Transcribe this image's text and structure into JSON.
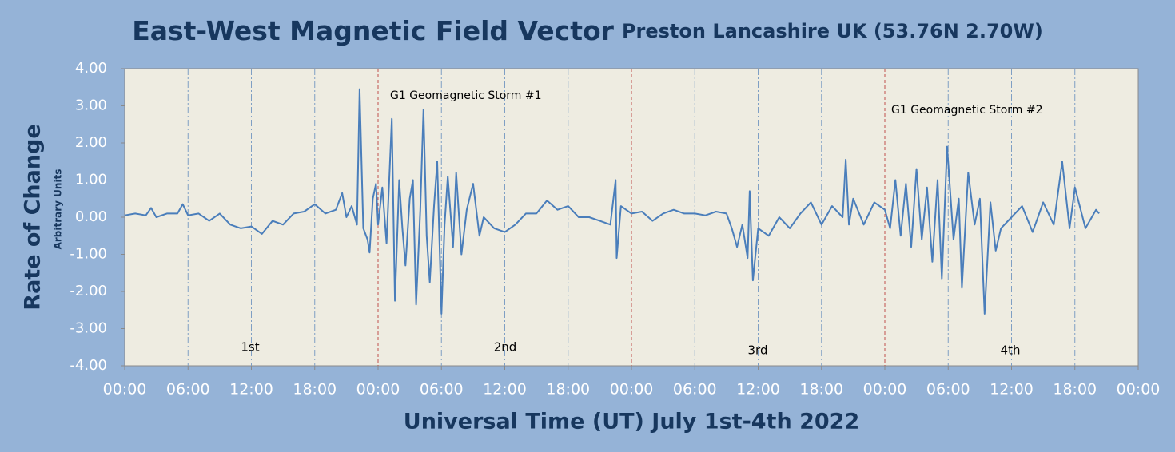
{
  "chart_data": {
    "type": "line",
    "title": "East-West Magnetic Field Vector",
    "subtitle": "Preston Lancashire UK (53.76N 2.70W)",
    "x_label": "Universal Time (UT) July 1st-4th 2022",
    "y_label": "Rate of Change",
    "y_sublabel": "Arbitrary Units",
    "annotations": [
      "G1 Geomagnetic Storm #1",
      "G1 Geomagnetic Storm #2"
    ],
    "day_labels": [
      "1st",
      "2nd",
      "3rd",
      "4th"
    ],
    "xlim": [
      0,
      96
    ],
    "xticks": [
      {
        "value": 0,
        "label": "00:00"
      },
      {
        "value": 6,
        "label": "06:00"
      },
      {
        "value": 12,
        "label": "12:00"
      },
      {
        "value": 18,
        "label": "18:00"
      },
      {
        "value": 24,
        "label": "00:00"
      },
      {
        "value": 30,
        "label": "06:00"
      },
      {
        "value": 36,
        "label": "12:00"
      },
      {
        "value": 42,
        "label": "18:00"
      },
      {
        "value": 48,
        "label": "00:00"
      },
      {
        "value": 54,
        "label": "06:00"
      },
      {
        "value": 60,
        "label": "12:00"
      },
      {
        "value": 66,
        "label": "18:00"
      },
      {
        "value": 72,
        "label": "00:00"
      },
      {
        "value": 78,
        "label": "06:00"
      },
      {
        "value": 84,
        "label": "12:00"
      },
      {
        "value": 90,
        "label": "18:00"
      },
      {
        "value": 96,
        "label": "00:00"
      }
    ],
    "ylim": [
      -4,
      4
    ],
    "yticks": [
      {
        "value": -4,
        "label": "-4.00"
      },
      {
        "value": -3,
        "label": "-3.00"
      },
      {
        "value": -2,
        "label": "-2.00"
      },
      {
        "value": -1,
        "label": "-1.00"
      },
      {
        "value": 0,
        "label": "0.00"
      },
      {
        "value": 1,
        "label": "1.00"
      },
      {
        "value": 2,
        "label": "2.00"
      },
      {
        "value": 3,
        "label": "3.00"
      },
      {
        "value": 4,
        "label": "4.00"
      }
    ],
    "grid": "x",
    "color": "#4a7ebb",
    "x": [
      0,
      1,
      2,
      2.5,
      3,
      4,
      5,
      5.5,
      6,
      7,
      8,
      9,
      10,
      11,
      12,
      13,
      14,
      15,
      16,
      17,
      18,
      19,
      20,
      20.6,
      21,
      21.5,
      22,
      22.25,
      22.6,
      23,
      23.2,
      23.5,
      23.8,
      24,
      24.4,
      24.8,
      25.3,
      25.6,
      26,
      26.3,
      26.6,
      27,
      27.3,
      27.6,
      28,
      28.3,
      28.6,
      28.9,
      29.3,
      29.6,
      30,
      30.3,
      30.6,
      31.1,
      31.4,
      31.9,
      32.4,
      33,
      33.6,
      34,
      35,
      36,
      37,
      38,
      39,
      40,
      41,
      42,
      43,
      44,
      45,
      46,
      46.5,
      46.6,
      47,
      48,
      49,
      50,
      51,
      52,
      53,
      54,
      55,
      56,
      57,
      57.5,
      58,
      58.5,
      59,
      59.2,
      59.5,
      60,
      61,
      62,
      63,
      64,
      65,
      66,
      67,
      68,
      68.3,
      68.6,
      69,
      70,
      71,
      72,
      72.5,
      73,
      73.5,
      74,
      74.5,
      75,
      75.5,
      76,
      76.5,
      77,
      77.4,
      77.9,
      78.5,
      79,
      79.3,
      79.9,
      80.5,
      81,
      81.45,
      82,
      82.5,
      83,
      84,
      85,
      86,
      87,
      88,
      88.8,
      89.5,
      90,
      91,
      92,
      92.3
    ],
    "values": [
      0.05,
      0.1,
      0.05,
      0.25,
      0,
      0.1,
      0.1,
      0.35,
      0.05,
      0.1,
      -0.1,
      0.1,
      -0.2,
      -0.3,
      -0.25,
      -0.45,
      -0.1,
      -0.2,
      0.1,
      0.15,
      0.35,
      0.1,
      0.2,
      0.65,
      0,
      0.3,
      -0.2,
      3.45,
      -0.3,
      -0.6,
      -0.95,
      0.5,
      0.9,
      -0.2,
      0.8,
      -0.7,
      2.65,
      -2.25,
      1.0,
      -0.3,
      -1.3,
      0.5,
      1.0,
      -2.35,
      0.2,
      2.9,
      -0.5,
      -1.75,
      0.3,
      1.5,
      -2.6,
      -0.2,
      1.1,
      -0.8,
      1.2,
      -1.0,
      0.2,
      0.9,
      -0.5,
      0,
      -0.3,
      -0.4,
      -0.2,
      0.1,
      0.1,
      0.45,
      0.2,
      0.3,
      0,
      0,
      -0.1,
      -0.2,
      1.0,
      -1.1,
      0.3,
      0.1,
      0.15,
      -0.1,
      0.1,
      0.2,
      0.1,
      0.1,
      0.05,
      0.15,
      0.1,
      -0.3,
      -0.8,
      -0.2,
      -1.1,
      0.7,
      -1.7,
      -0.3,
      -0.5,
      0,
      -0.3,
      0.1,
      0.4,
      -0.2,
      0.3,
      0,
      1.55,
      -0.2,
      0.5,
      -0.2,
      0.4,
      0.2,
      -0.3,
      1.0,
      -0.5,
      0.9,
      -0.8,
      1.3,
      -0.6,
      0.8,
      -1.2,
      1.0,
      -1.65,
      1.9,
      -0.6,
      0.5,
      -1.9,
      1.2,
      -0.2,
      0.5,
      -2.6,
      0.4,
      -0.9,
      -0.3,
      0,
      0.3,
      -0.4,
      0.4,
      -0.2,
      1.5,
      -0.3,
      0.8,
      -0.3,
      0.2,
      0.1
    ]
  }
}
